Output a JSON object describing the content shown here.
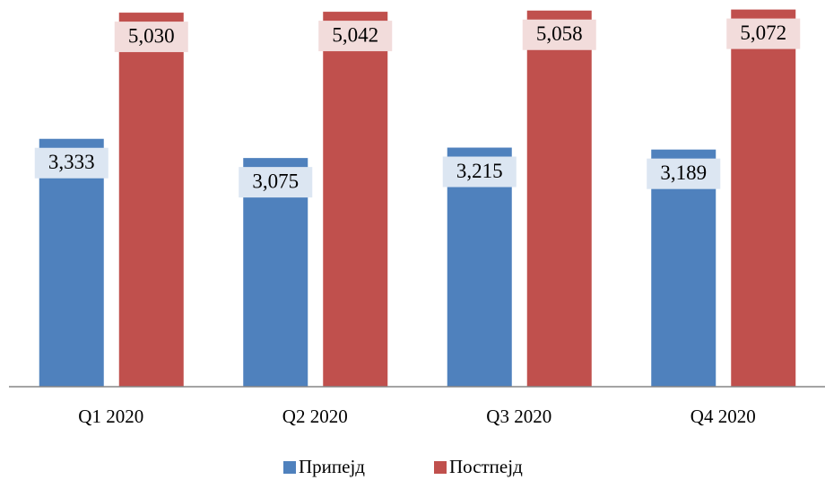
{
  "chart_data": {
    "type": "bar",
    "categories": [
      "Q1 2020",
      "Q2 2020",
      "Q3 2020",
      "Q4 2020"
    ],
    "series": [
      {
        "name": "Припејд",
        "color": "#4f81bd",
        "values": [
          3333,
          3075,
          3215,
          3189
        ],
        "value_labels": [
          "3,333",
          "3,075",
          "3,215",
          "3,189"
        ]
      },
      {
        "name": "Постпејд",
        "color": "#c0504d",
        "values": [
          5030,
          5042,
          5058,
          5072
        ],
        "value_labels": [
          "5,030",
          "5,042",
          "5,058",
          "5,072"
        ]
      }
    ],
    "ylim": [
      0,
      5200
    ]
  }
}
